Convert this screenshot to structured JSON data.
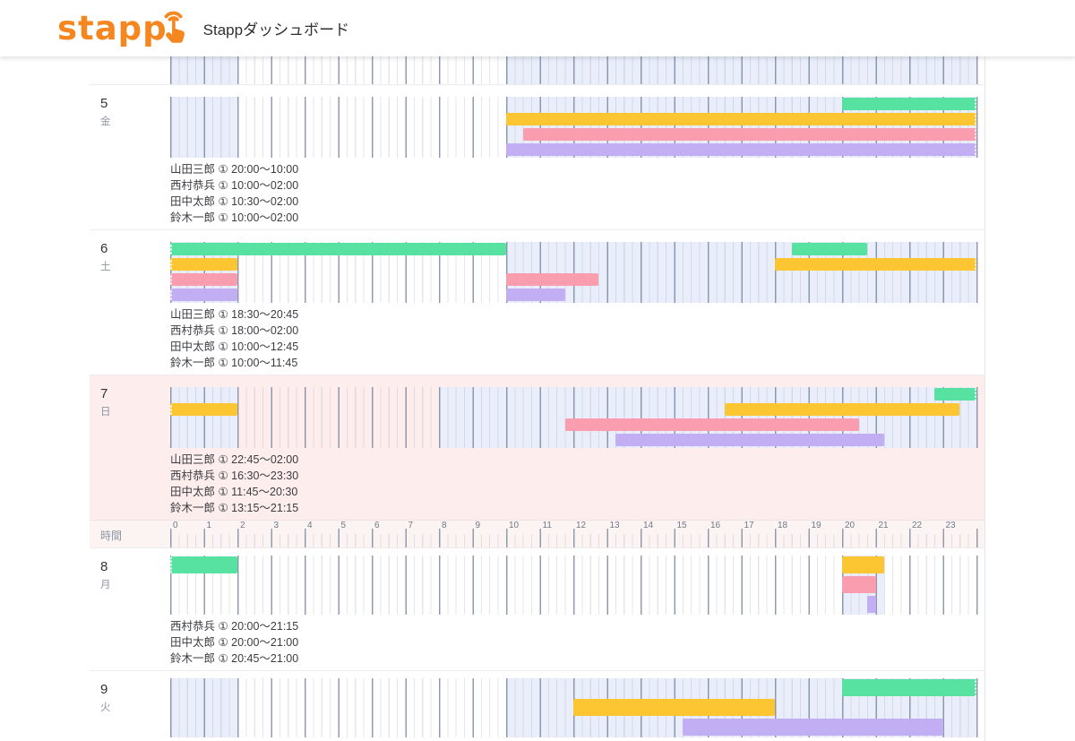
{
  "header": {
    "logo_text": "stapp",
    "title": "Stappダッシュボード",
    "brand_color": "#f6861f"
  },
  "colors": {
    "green": "#57e2a2",
    "yellow": "#fcc532",
    "pink": "#fa9dae",
    "purple": "#c2aef2",
    "shade": "#e9eefa",
    "sunday_bg": "#fdeeed"
  },
  "axis": {
    "label": "時間",
    "hours": [
      "0",
      "1",
      "2",
      "3",
      "4",
      "5",
      "6",
      "7",
      "8",
      "9",
      "10",
      "11",
      "12",
      "13",
      "14",
      "15",
      "16",
      "17",
      "18",
      "19",
      "20",
      "21",
      "22",
      "23"
    ]
  },
  "rows": [
    {
      "type": "day",
      "date": "",
      "weekday": "",
      "sliver": true,
      "lanes": 0,
      "shaded": [
        [
          0,
          2
        ],
        [
          10,
          24
        ]
      ],
      "bars": [],
      "texts": []
    },
    {
      "type": "day",
      "date": "5",
      "weekday": "金",
      "lanes": 4,
      "shaded": [
        [
          0,
          2
        ],
        [
          10,
          24
        ]
      ],
      "bars": [
        {
          "lane": 0,
          "color": "green",
          "start": 20,
          "end": 24,
          "cont_right": true
        },
        {
          "lane": 1,
          "color": "yellow",
          "start": 10,
          "end": 24,
          "cont_right": true
        },
        {
          "lane": 2,
          "color": "pink",
          "start": 10.5,
          "end": 24,
          "cont_right": true
        },
        {
          "lane": 3,
          "color": "purple",
          "start": 10,
          "end": 24,
          "cont_right": true
        }
      ],
      "texts": [
        "山田三郎 ① 20:00〜10:00",
        "西村恭兵 ① 10:00〜02:00",
        "田中太郎 ① 10:30〜02:00",
        "鈴木一郎 ① 10:00〜02:00"
      ]
    },
    {
      "type": "day",
      "date": "6",
      "weekday": "土",
      "lanes": 4,
      "shaded": [
        [
          0,
          2
        ],
        [
          10,
          24
        ]
      ],
      "bars": [
        {
          "lane": 0,
          "color": "green",
          "start": 0,
          "end": 10,
          "cont_left": true
        },
        {
          "lane": 0,
          "color": "green",
          "start": 18.5,
          "end": 20.75
        },
        {
          "lane": 1,
          "color": "yellow",
          "start": 0,
          "end": 2,
          "cont_left": true
        },
        {
          "lane": 1,
          "color": "yellow",
          "start": 18,
          "end": 24,
          "cont_right": true
        },
        {
          "lane": 2,
          "color": "pink",
          "start": 0,
          "end": 2,
          "cont_left": true
        },
        {
          "lane": 2,
          "color": "pink",
          "start": 10,
          "end": 12.75
        },
        {
          "lane": 3,
          "color": "purple",
          "start": 0,
          "end": 2,
          "cont_left": true
        },
        {
          "lane": 3,
          "color": "purple",
          "start": 10,
          "end": 11.75
        }
      ],
      "texts": [
        "山田三郎 ① 18:30〜20:45",
        "西村恭兵 ① 18:00〜02:00",
        "田中太郎 ① 10:00〜12:45",
        "鈴木一郎 ① 10:00〜11:45"
      ]
    },
    {
      "type": "day",
      "date": "7",
      "weekday": "日",
      "sunday": true,
      "lanes": 4,
      "shaded": [
        [
          0,
          2
        ],
        [
          8,
          24
        ]
      ],
      "bars": [
        {
          "lane": 0,
          "color": "green",
          "start": 22.75,
          "end": 24,
          "cont_right": true
        },
        {
          "lane": 1,
          "color": "yellow",
          "start": 0,
          "end": 2,
          "cont_left": true
        },
        {
          "lane": 1,
          "color": "yellow",
          "start": 16.5,
          "end": 23.5
        },
        {
          "lane": 2,
          "color": "pink",
          "start": 11.75,
          "end": 20.5
        },
        {
          "lane": 3,
          "color": "purple",
          "start": 13.25,
          "end": 21.25
        }
      ],
      "texts": [
        "山田三郎 ① 22:45〜02:00",
        "西村恭兵 ① 16:30〜23:30",
        "田中太郎 ① 11:45〜20:30",
        "鈴木一郎 ① 13:15〜21:15"
      ]
    },
    {
      "type": "axis"
    },
    {
      "type": "day",
      "date": "8",
      "weekday": "月",
      "lanes": 3,
      "shaded": [
        [
          20,
          21.25
        ]
      ],
      "bars": [
        {
          "lane": 0,
          "color": "green",
          "start": 0,
          "end": 2,
          "cont_left": true
        },
        {
          "lane": 0,
          "color": "yellow",
          "start": 20,
          "end": 21.25
        },
        {
          "lane": 1,
          "color": "pink",
          "start": 20,
          "end": 21
        },
        {
          "lane": 2,
          "color": "purple",
          "start": 20.75,
          "end": 21
        }
      ],
      "texts": [
        "西村恭兵 ① 20:00〜21:15",
        "田中太郎 ① 20:00〜21:00",
        "鈴木一郎 ① 20:45〜21:00"
      ]
    },
    {
      "type": "day",
      "date": "9",
      "weekday": "火",
      "lanes": 3,
      "shaded": [
        [
          0,
          2
        ],
        [
          10,
          24
        ]
      ],
      "bars": [
        {
          "lane": 0,
          "color": "green",
          "start": 20,
          "end": 24,
          "cont_right": true
        },
        {
          "lane": 1,
          "color": "yellow",
          "start": 12,
          "end": 18
        },
        {
          "lane": 2,
          "color": "purple",
          "start": 15.25,
          "end": 23
        }
      ],
      "texts": []
    }
  ]
}
